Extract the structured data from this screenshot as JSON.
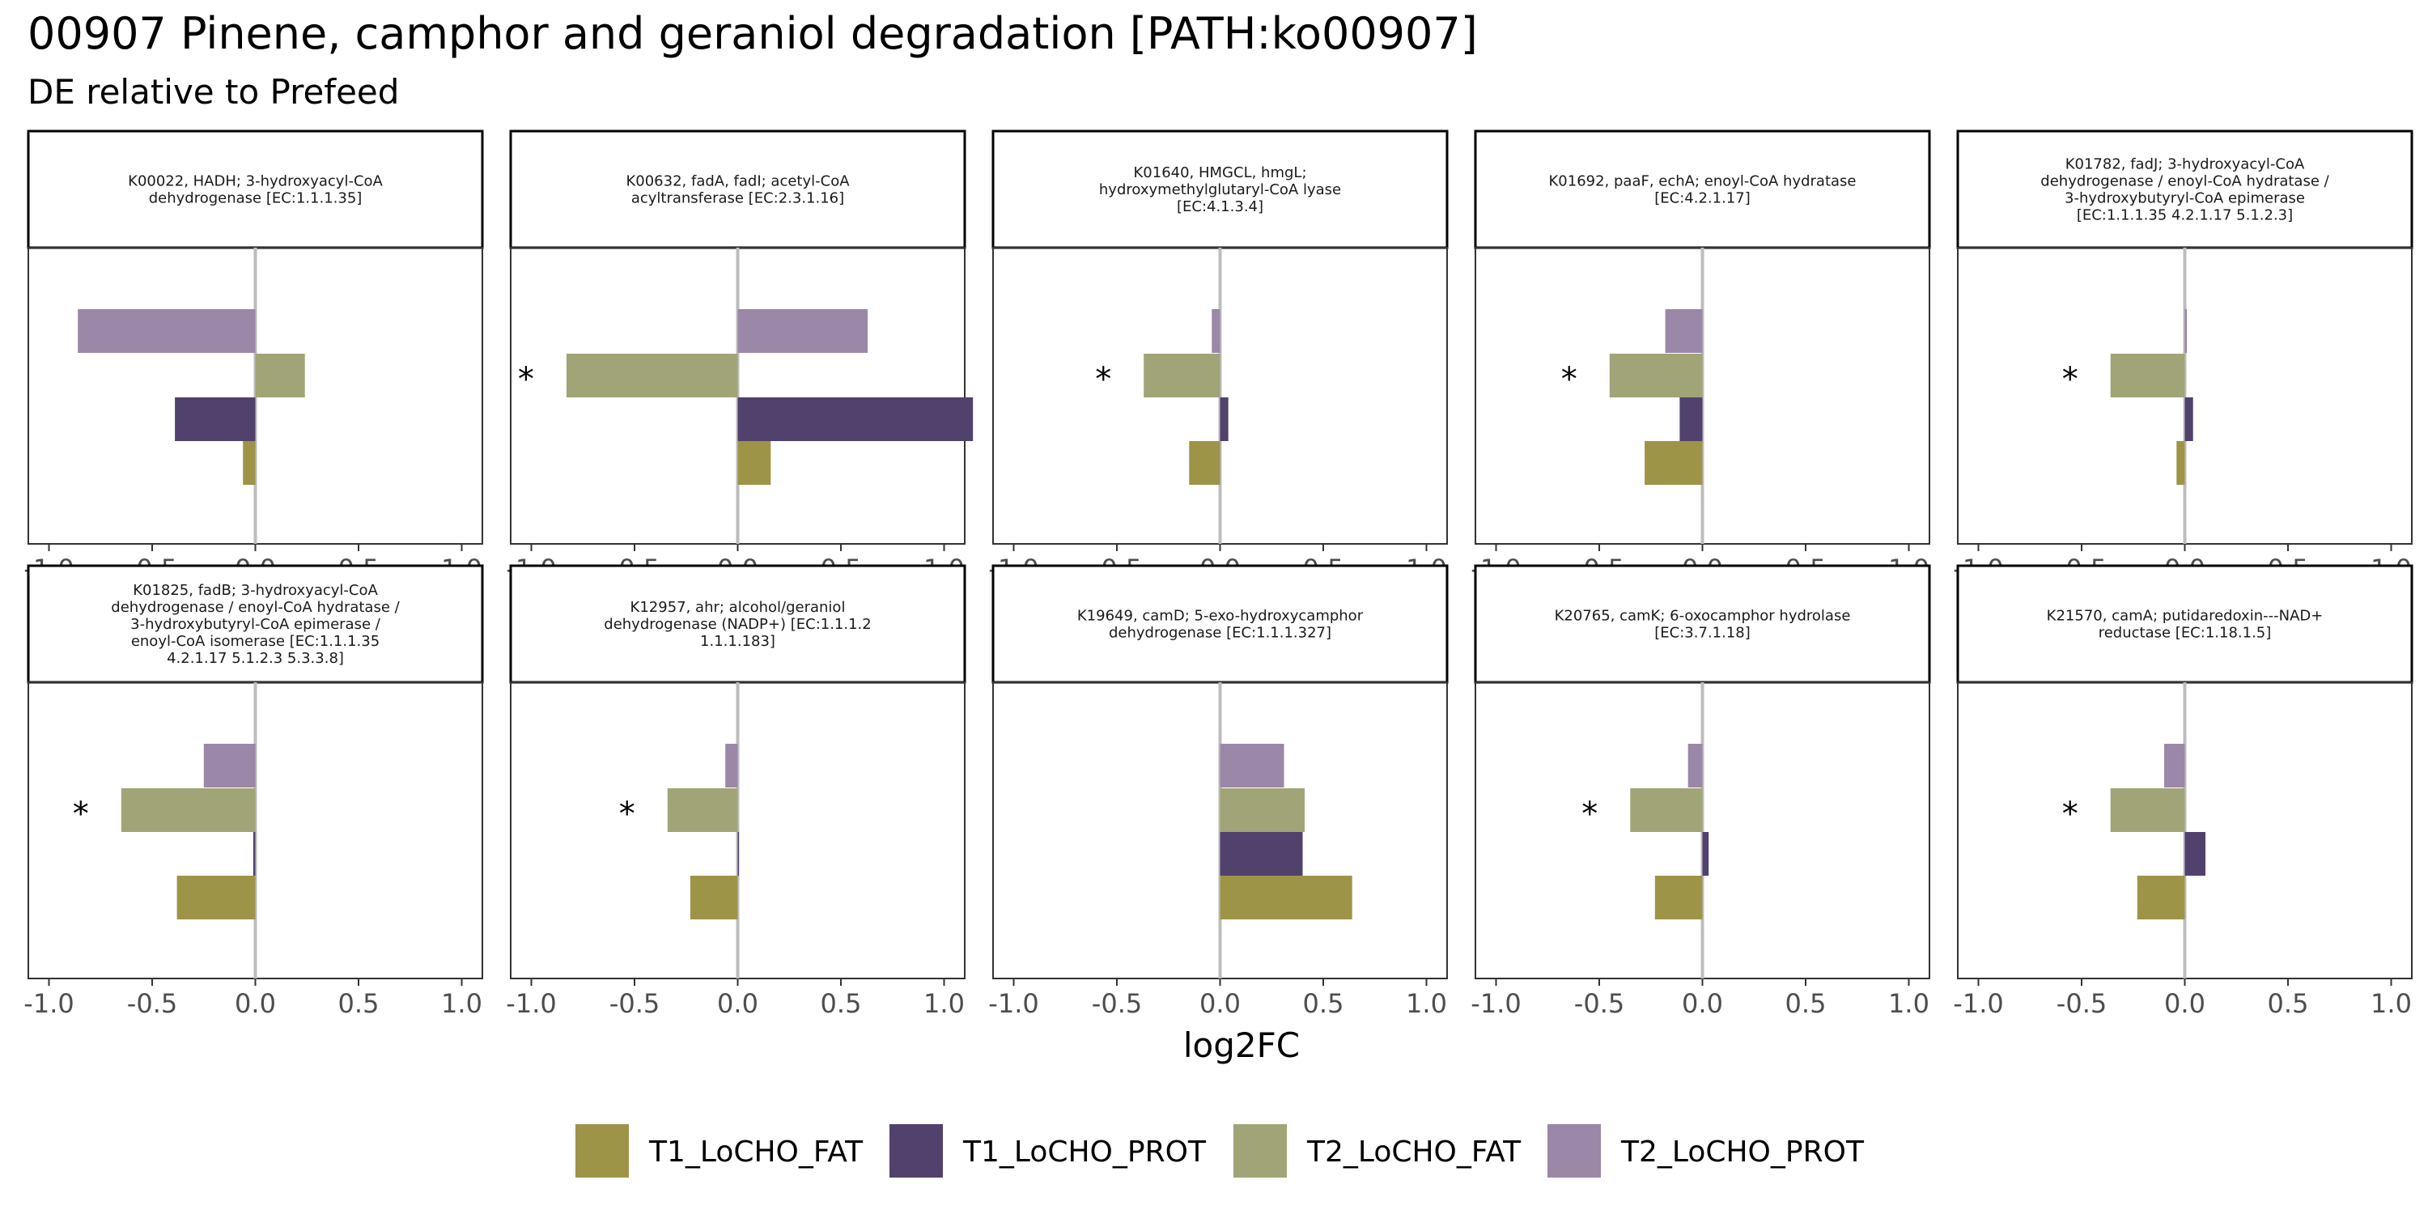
{
  "chart_data": {
    "type": "bar",
    "orientation": "horizontal",
    "title": "00907 Pinene, camphor and geraniol degradation [PATH:ko00907]",
    "subtitle": "DE relative to Prefeed",
    "xlabel": "log2FC",
    "xlim": [
      -1.1,
      1.1
    ],
    "x_ticks": [
      -1.0,
      -0.5,
      0.0,
      0.5,
      1.0
    ],
    "x_tick_labels": [
      "-1.0",
      "-0.5",
      "0.0",
      "0.5",
      "1.0"
    ],
    "grid": false,
    "legend_position": "bottom",
    "series": [
      {
        "name": "T1_LoCHO_FAT",
        "color": "#9e9447"
      },
      {
        "name": "T1_LoCHO_PROT",
        "color": "#51416d"
      },
      {
        "name": "T2_LoCHO_FAT",
        "color": "#a1a476"
      },
      {
        "name": "T2_LoCHO_PROT",
        "color": "#9b87a7"
      }
    ],
    "significance_marker": "*",
    "facets": [
      {
        "label": [
          "K00022, HADH; 3-hydroxyacyl-CoA",
          "dehydrogenase [EC:1.1.1.35]"
        ],
        "values": {
          "T2_LoCHO_PROT": -0.86,
          "T2_LoCHO_FAT": 0.24,
          "T1_LoCHO_PROT": -0.39,
          "T1_LoCHO_FAT": -0.06
        },
        "significant": []
      },
      {
        "label": [
          "K00632, fadA, fadI; acetyl-CoA",
          "acyltransferase [EC:2.3.1.16]"
        ],
        "values": {
          "T2_LoCHO_PROT": 0.63,
          "T2_LoCHO_FAT": -0.83,
          "T1_LoCHO_PROT": 1.14,
          "T1_LoCHO_FAT": 0.16
        },
        "significant": [
          "T2_LoCHO_FAT"
        ]
      },
      {
        "label": [
          "K01640, HMGCL, hmgL;",
          "hydroxymethylglutaryl-CoA lyase",
          "[EC:4.1.3.4]"
        ],
        "values": {
          "T2_LoCHO_PROT": -0.04,
          "T2_LoCHO_FAT": -0.37,
          "T1_LoCHO_PROT": 0.04,
          "T1_LoCHO_FAT": -0.15
        },
        "significant": [
          "T2_LoCHO_FAT"
        ]
      },
      {
        "label": [
          "K01692, paaF, echA; enoyl-CoA hydratase",
          "[EC:4.2.1.17]"
        ],
        "values": {
          "T2_LoCHO_PROT": -0.18,
          "T2_LoCHO_FAT": -0.45,
          "T1_LoCHO_PROT": -0.11,
          "T1_LoCHO_FAT": -0.28
        },
        "significant": [
          "T2_LoCHO_FAT"
        ]
      },
      {
        "label": [
          "K01782, fadJ; 3-hydroxyacyl-CoA",
          "dehydrogenase / enoyl-CoA hydratase /",
          "3-hydroxybutyryl-CoA epimerase",
          "[EC:1.1.1.35 4.2.1.17 5.1.2.3]"
        ],
        "values": {
          "T2_LoCHO_PROT": 0.01,
          "T2_LoCHO_FAT": -0.36,
          "T1_LoCHO_PROT": 0.04,
          "T1_LoCHO_FAT": -0.04
        },
        "significant": [
          "T2_LoCHO_FAT"
        ]
      },
      {
        "label": [
          "K01825, fadB; 3-hydroxyacyl-CoA",
          "dehydrogenase / enoyl-CoA hydratase /",
          "3-hydroxybutyryl-CoA epimerase /",
          "enoyl-CoA isomerase [EC:1.1.1.35",
          "4.2.1.17 5.1.2.3 5.3.3.8]"
        ],
        "values": {
          "T2_LoCHO_PROT": -0.25,
          "T2_LoCHO_FAT": -0.65,
          "T1_LoCHO_PROT": -0.01,
          "T1_LoCHO_FAT": -0.38
        },
        "significant": [
          "T2_LoCHO_FAT"
        ]
      },
      {
        "label": [
          "K12957, ahr; alcohol/geraniol",
          "dehydrogenase (NADP+) [EC:1.1.1.2",
          "1.1.1.183]"
        ],
        "values": {
          "T2_LoCHO_PROT": -0.06,
          "T2_LoCHO_FAT": -0.34,
          "T1_LoCHO_PROT": 0.0,
          "T1_LoCHO_FAT": -0.23
        },
        "significant": [
          "T2_LoCHO_FAT"
        ]
      },
      {
        "label": [
          "K19649, camD; 5-exo-hydroxycamphor",
          "dehydrogenase [EC:1.1.1.327]"
        ],
        "values": {
          "T2_LoCHO_PROT": 0.31,
          "T2_LoCHO_FAT": 0.41,
          "T1_LoCHO_PROT": 0.4,
          "T1_LoCHO_FAT": 0.64
        },
        "significant": []
      },
      {
        "label": [
          "K20765, camK; 6-oxocamphor hydrolase",
          "[EC:3.7.1.18]"
        ],
        "values": {
          "T2_LoCHO_PROT": -0.07,
          "T2_LoCHO_FAT": -0.35,
          "T1_LoCHO_PROT": 0.03,
          "T1_LoCHO_FAT": -0.23
        },
        "significant": [
          "T2_LoCHO_FAT"
        ]
      },
      {
        "label": [
          "K21570, camA; putidaredoxin---NAD+",
          "reductase [EC:1.18.1.5]"
        ],
        "values": {
          "T2_LoCHO_PROT": -0.1,
          "T2_LoCHO_FAT": -0.36,
          "T1_LoCHO_PROT": 0.1,
          "T1_LoCHO_FAT": -0.23
        },
        "significant": [
          "T2_LoCHO_FAT"
        ]
      }
    ]
  }
}
